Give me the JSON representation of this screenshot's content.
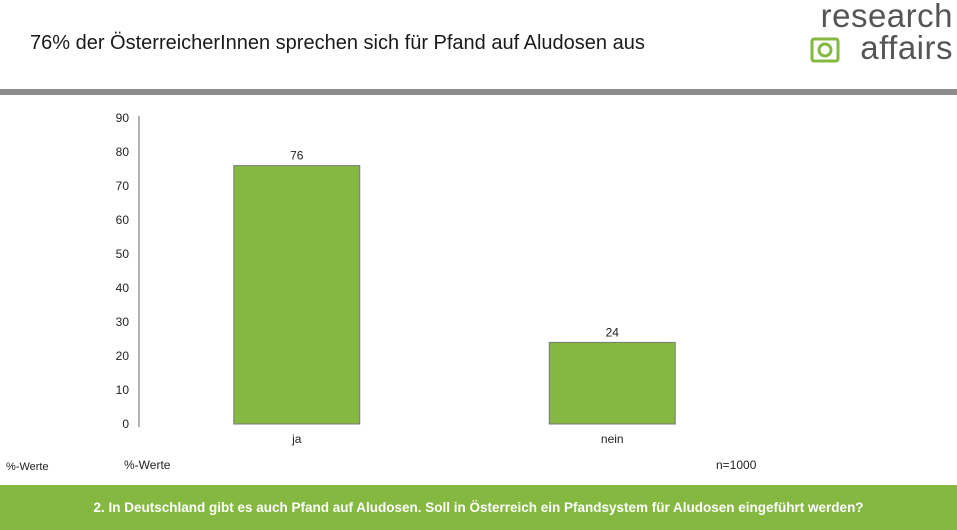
{
  "header": {
    "title": "76% der ÖsterreicherInnen sprechen sich für Pfand auf Aludosen aus",
    "logo_top": "research",
    "logo_bottom": "affairs"
  },
  "colors": {
    "bar": "#84b840",
    "bar_stroke": "#7a7a7a",
    "divider": "#8c8c8c",
    "banner": "#84b840"
  },
  "chart_data": {
    "type": "bar",
    "categories": [
      "ja",
      "nein"
    ],
    "values": [
      76,
      24
    ],
    "ylim": [
      0,
      90
    ],
    "yticks": [
      0,
      10,
      20,
      30,
      40,
      50,
      60,
      70,
      80,
      90
    ],
    "xlabel": "",
    "ylabel": "",
    "grid": false,
    "data_labels": true
  },
  "footer": {
    "unit_left": "%-Werte",
    "unit_mid": "%-Werte",
    "sample": "n=1000",
    "question": "2. In Deutschland gibt es auch Pfand auf Aludosen. Soll in Österreich ein Pfandsystem für Aludosen eingeführt werden?"
  }
}
